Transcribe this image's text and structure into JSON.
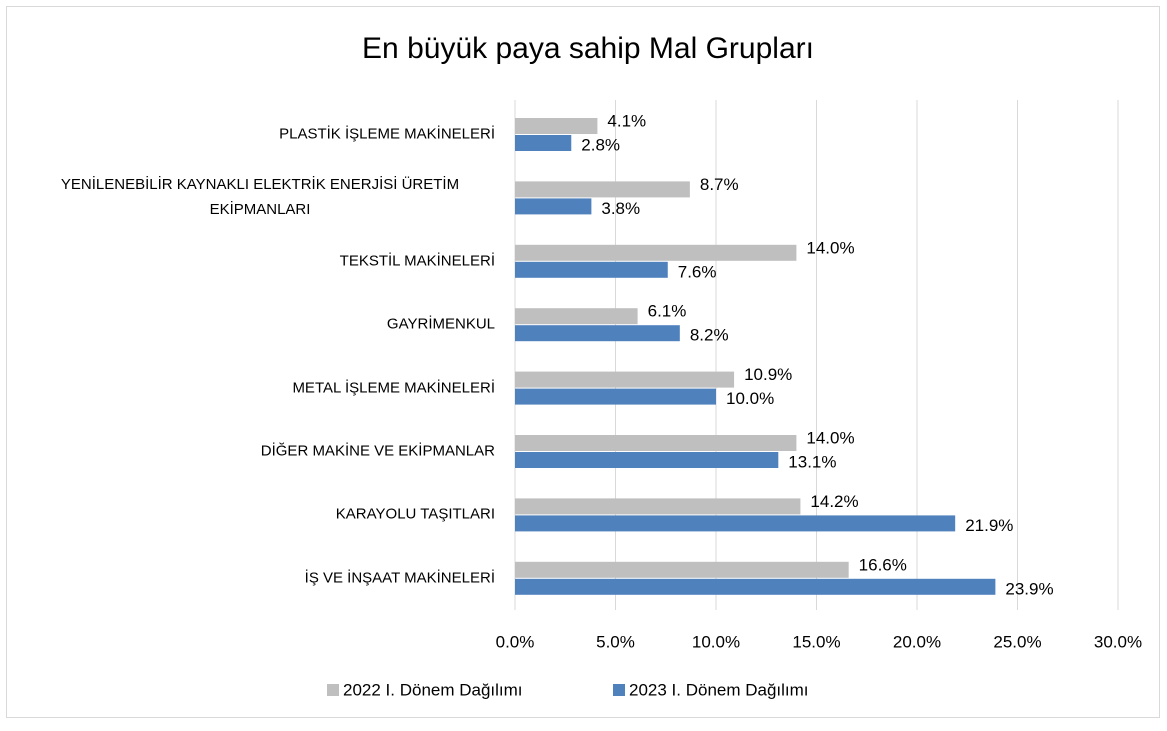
{
  "chart_data": {
    "type": "hbar",
    "title": "En büyük paya sahip Mal Grupları",
    "categories": [
      "PLASTİK İŞLEME MAKİNELERİ",
      "YENİLENEBİLİR KAYNAKLI ELEKTRİK ENERJİSİ ÜRETİM EKİPMANLARI",
      "TEKSTİL MAKİNELERİ",
      "GAYRİMENKUL",
      "METAL İŞLEME MAKİNELERİ",
      "DİĞER MAKİNE VE EKİPMANLAR",
      "KARAYOLU TAŞITLARI",
      "İŞ VE İNŞAAT MAKİNELERİ"
    ],
    "series": [
      {
        "name": "2022 I. Dönem Dağılımı",
        "color": "#bfbfbf",
        "values": [
          4.1,
          8.7,
          14.0,
          6.1,
          10.9,
          14.0,
          14.2,
          16.6
        ],
        "value_labels": [
          "4.1%",
          "8.7%",
          "14.0%",
          "6.1%",
          "10.9%",
          "14.0%",
          "14.2%",
          "16.6%"
        ]
      },
      {
        "name": "2023 I. Dönem Dağılımı",
        "color": "#4f81bd",
        "values": [
          2.8,
          3.8,
          7.6,
          8.2,
          10.0,
          13.1,
          21.9,
          23.9
        ],
        "value_labels": [
          "2.8%",
          "3.8%",
          "7.6%",
          "8.2%",
          "10.0%",
          "13.1%",
          "21.9%",
          "23.9%"
        ]
      }
    ],
    "xlim": [
      0,
      30
    ],
    "xticks": [
      {
        "value": 0,
        "label": "0.0%"
      },
      {
        "value": 5,
        "label": "5.0%"
      },
      {
        "value": 10,
        "label": "10.0%"
      },
      {
        "value": 15,
        "label": "15.0%"
      },
      {
        "value": 20,
        "label": "20.0%"
      },
      {
        "value": 25,
        "label": "25.0%"
      },
      {
        "value": 30,
        "label": "30.0%"
      }
    ],
    "grid": true,
    "legend": "bottom"
  }
}
